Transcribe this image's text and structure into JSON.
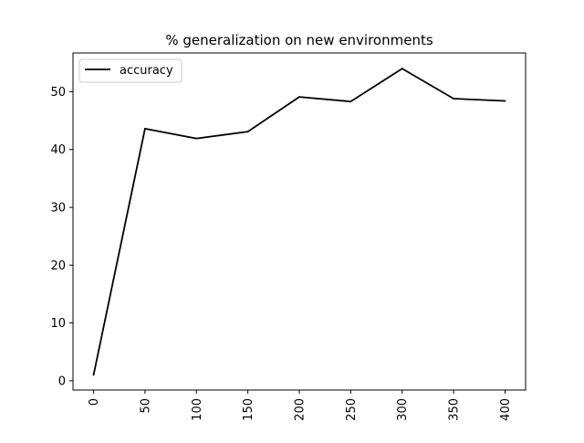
{
  "chart_data": {
    "type": "line",
    "title": "% generalization on new environments",
    "xlabel": "",
    "ylabel": "",
    "x": [
      0,
      50,
      100,
      150,
      200,
      250,
      300,
      350,
      400
    ],
    "series": [
      {
        "name": "accuracy",
        "color": "#000000",
        "values": [
          1.0,
          43.6,
          41.9,
          43.1,
          49.1,
          48.3,
          54.0,
          48.8,
          48.4
        ]
      }
    ],
    "xlim": [
      -20,
      420
    ],
    "ylim": [
      -1.6,
      56.7
    ],
    "x_ticks": [
      0,
      50,
      100,
      150,
      200,
      250,
      300,
      350,
      400
    ],
    "x_tick_labels": [
      "0",
      "50",
      "100",
      "150",
      "200",
      "250",
      "300",
      "350",
      "400"
    ],
    "y_ticks": [
      0,
      10,
      20,
      30,
      40,
      50
    ],
    "y_tick_labels": [
      "0",
      "10",
      "20",
      "30",
      "40",
      "50"
    ],
    "x_tick_rotation": "vertical",
    "grid": false,
    "legend_position": "upper-left"
  }
}
